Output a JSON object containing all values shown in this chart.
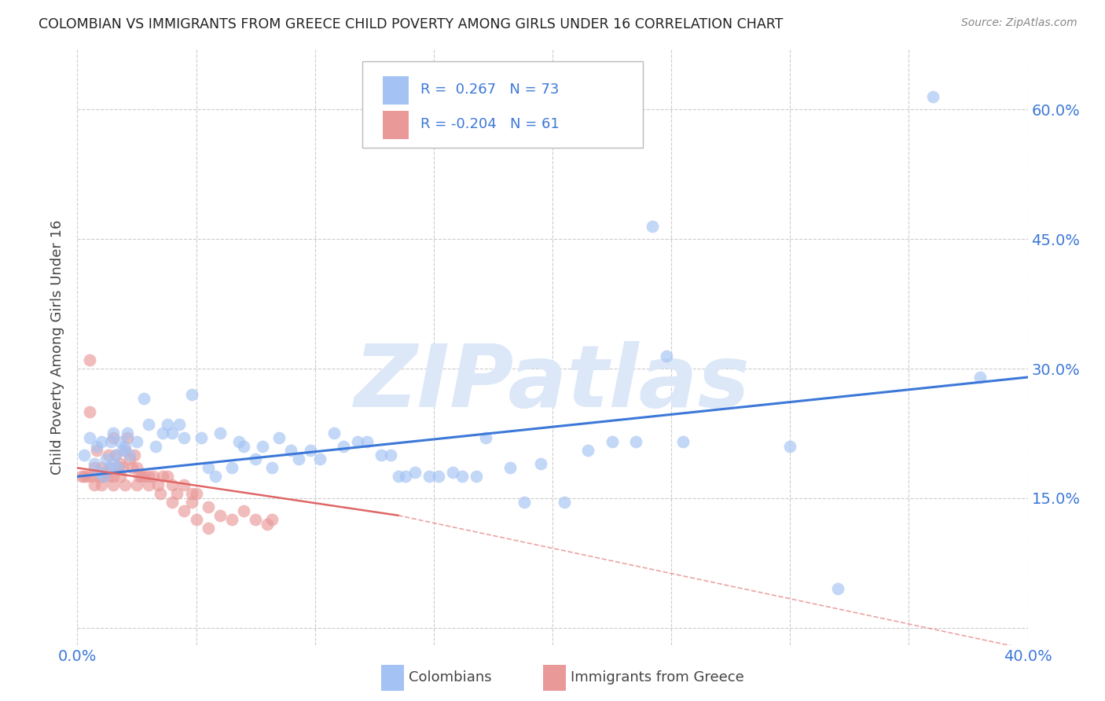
{
  "title": "COLOMBIAN VS IMMIGRANTS FROM GREECE CHILD POVERTY AMONG GIRLS UNDER 16 CORRELATION CHART",
  "source": "Source: ZipAtlas.com",
  "ylabel": "Child Poverty Among Girls Under 16",
  "xlim": [
    0.0,
    0.4
  ],
  "ylim": [
    -0.02,
    0.67
  ],
  "yticks": [
    0.0,
    0.15,
    0.3,
    0.45,
    0.6
  ],
  "ytick_labels": [
    "",
    "15.0%",
    "30.0%",
    "45.0%",
    "60.0%"
  ],
  "xticks": [
    0.0,
    0.05,
    0.1,
    0.15,
    0.2,
    0.25,
    0.3,
    0.35,
    0.4
  ],
  "xtick_labels": [
    "0.0%",
    "",
    "",
    "",
    "",
    "",
    "",
    "",
    "40.0%"
  ],
  "legend_blue_label": "Colombians",
  "legend_pink_label": "Immigrants from Greece",
  "r_blue": 0.267,
  "n_blue": 73,
  "r_pink": -0.204,
  "n_pink": 61,
  "blue_color": "#a4c2f4",
  "pink_color": "#ea9999",
  "trend_blue_color": "#3c78d8",
  "trend_pink_color": "#e06666",
  "watermark": "ZIPatlas",
  "watermark_color": "#dce8f8",
  "title_color": "#222222",
  "axis_color": "#3c78d8",
  "tick_color": "#3c78d8",
  "grid_color": "#cccccc",
  "background_color": "#ffffff",
  "blue_x": [
    0.003,
    0.005,
    0.007,
    0.008,
    0.009,
    0.01,
    0.011,
    0.012,
    0.013,
    0.014,
    0.015,
    0.015,
    0.016,
    0.017,
    0.018,
    0.019,
    0.02,
    0.021,
    0.022,
    0.025,
    0.028,
    0.03,
    0.033,
    0.036,
    0.038,
    0.04,
    0.043,
    0.045,
    0.048,
    0.052,
    0.055,
    0.058,
    0.06,
    0.065,
    0.068,
    0.07,
    0.075,
    0.078,
    0.082,
    0.085,
    0.09,
    0.093,
    0.098,
    0.102,
    0.108,
    0.112,
    0.118,
    0.122,
    0.128,
    0.132,
    0.138,
    0.142,
    0.148,
    0.152,
    0.158,
    0.162,
    0.168,
    0.172,
    0.182,
    0.188,
    0.195,
    0.205,
    0.215,
    0.225,
    0.235,
    0.242,
    0.248,
    0.255,
    0.32,
    0.36,
    0.38,
    0.3,
    0.135
  ],
  "blue_y": [
    0.2,
    0.22,
    0.19,
    0.21,
    0.18,
    0.215,
    0.175,
    0.195,
    0.185,
    0.215,
    0.225,
    0.19,
    0.2,
    0.185,
    0.215,
    0.205,
    0.21,
    0.225,
    0.2,
    0.215,
    0.265,
    0.235,
    0.21,
    0.225,
    0.235,
    0.225,
    0.235,
    0.22,
    0.27,
    0.22,
    0.185,
    0.175,
    0.225,
    0.185,
    0.215,
    0.21,
    0.195,
    0.21,
    0.185,
    0.22,
    0.205,
    0.195,
    0.205,
    0.195,
    0.225,
    0.21,
    0.215,
    0.215,
    0.2,
    0.2,
    0.175,
    0.18,
    0.175,
    0.175,
    0.18,
    0.175,
    0.175,
    0.22,
    0.185,
    0.145,
    0.19,
    0.145,
    0.205,
    0.215,
    0.215,
    0.465,
    0.315,
    0.215,
    0.045,
    0.615,
    0.29,
    0.21,
    0.175
  ],
  "pink_x": [
    0.002,
    0.003,
    0.004,
    0.005,
    0.006,
    0.007,
    0.007,
    0.008,
    0.009,
    0.01,
    0.01,
    0.011,
    0.012,
    0.013,
    0.013,
    0.014,
    0.015,
    0.015,
    0.016,
    0.017,
    0.018,
    0.018,
    0.019,
    0.02,
    0.021,
    0.022,
    0.023,
    0.024,
    0.025,
    0.026,
    0.027,
    0.028,
    0.03,
    0.032,
    0.034,
    0.036,
    0.038,
    0.04,
    0.042,
    0.045,
    0.048,
    0.05,
    0.055,
    0.06,
    0.065,
    0.07,
    0.075,
    0.08,
    0.082,
    0.048,
    0.01,
    0.015,
    0.02,
    0.025,
    0.03,
    0.035,
    0.04,
    0.045,
    0.05,
    0.055,
    0.005
  ],
  "pink_y": [
    0.175,
    0.175,
    0.175,
    0.31,
    0.175,
    0.185,
    0.165,
    0.205,
    0.175,
    0.185,
    0.175,
    0.175,
    0.18,
    0.2,
    0.175,
    0.185,
    0.22,
    0.175,
    0.2,
    0.185,
    0.19,
    0.175,
    0.185,
    0.205,
    0.22,
    0.195,
    0.185,
    0.2,
    0.185,
    0.175,
    0.175,
    0.175,
    0.175,
    0.175,
    0.165,
    0.175,
    0.175,
    0.165,
    0.155,
    0.165,
    0.155,
    0.155,
    0.14,
    0.13,
    0.125,
    0.135,
    0.125,
    0.12,
    0.125,
    0.145,
    0.165,
    0.165,
    0.165,
    0.165,
    0.165,
    0.155,
    0.145,
    0.135,
    0.125,
    0.115,
    0.25
  ]
}
